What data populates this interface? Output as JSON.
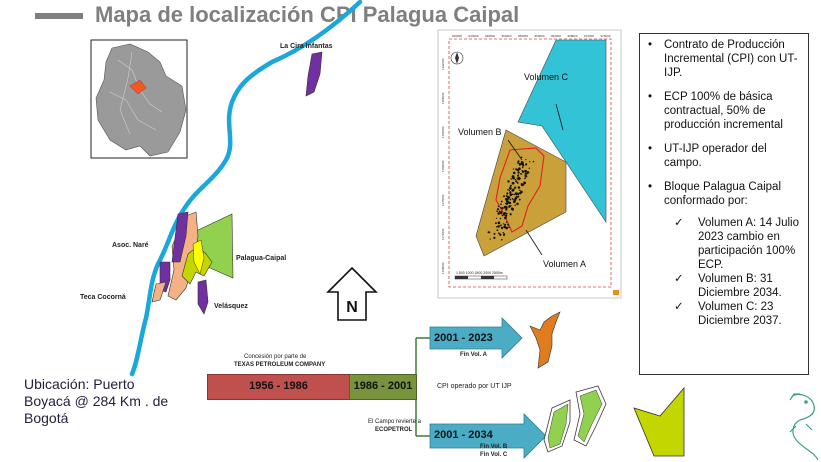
{
  "title": "Mapa de localización CPI Palagua Caipal",
  "map_labels": {
    "la_cira": "La Cira Infantas",
    "asoc_nare": "Asoc. Naré",
    "palagua_caipal": "Palagua-Caipal",
    "teca_cocorna": "Teca Cocorná",
    "velasquez": "Velásquez"
  },
  "compass_letter": "N",
  "inset_map": {
    "volume_labels": [
      "Volumen C",
      "Volumen B",
      "Volumen A"
    ],
    "top_axis_ticks": [
      "940000",
      "944000",
      "948000",
      "952000",
      "956000",
      "960000",
      "964000",
      "968000",
      "972000",
      "976000"
    ],
    "left_axis_ticks": [
      "1192000",
      "1188000",
      "1184000",
      "1180000",
      "1176000",
      "1172000",
      "1168000"
    ],
    "scale_label": "1   500   1000   1500   2000   2500m"
  },
  "info": {
    "bullets": [
      "Contrato de Producción Incremental (CPI) con UT-IJP.",
      "ECP 100% de básica contractual, 50% de producción incremental",
      "UT-IJP operador del campo.",
      "Bloque Palagua Caipal conformado por:"
    ],
    "sub_bullets": [
      "Volumen A: 14 Julio 2023 cambio en participación 100% ECP.",
      "Volumen B: 31 Diciembre 2034.",
      "Volumen C: 23 Diciembre 2037."
    ]
  },
  "location_text": "Ubicación: Puerto Boyacá  @ 284 Km . de Bogotá",
  "timeline": {
    "concession_note_1": "Concesión por parte de",
    "concession_note_2": "TEXAS PETROLEUM COMPANY",
    "period_1": "1956 - 1986",
    "period_2": "1986 - 2001",
    "reverts_note_1": "El Campo revierte a",
    "reverts_note_2": "ECOPETROL",
    "arrow_top": "2001 - 2023",
    "fin_vol_a": "Fin Vol. A",
    "cpi_note": "CPI operado por UT IJP",
    "arrow_bottom": "2001 - 2034",
    "fin_vol_b": "Fin Vol. B",
    "fin_vol_c": "Fin Vol. C"
  },
  "colors": {
    "title_gray": "#7f7f7f",
    "river_blue": "#1aa7d9",
    "period_1": "#c0504d",
    "period_2": "#77933c",
    "arrow_fill": "#4bacc6",
    "vol_a": "#f79646",
    "vol_b": "#c9a03a",
    "vol_c": "#33c3d6",
    "light_green": "#92d050",
    "yellow_green": "#c4d600",
    "purple": "#7030a0"
  }
}
